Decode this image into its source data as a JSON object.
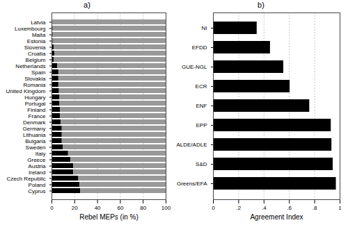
{
  "chart_data": [
    {
      "type": "bar",
      "title": "a)",
      "orientation": "horizontal",
      "stacked": true,
      "grid": true,
      "xlabel": "Rebel MEPs (in %)",
      "categories": [
        "Latvia",
        "Luxembourg",
        "Malta",
        "Estonia",
        "Slovenia",
        "Croatia",
        "Belgium",
        "Netherlands",
        "Spain",
        "Slovakia",
        "Romania",
        "United Kingdom",
        "Hungary",
        "Portugal",
        "Finland",
        "France",
        "Denmark",
        "Germany",
        "Lithuania",
        "Bulgaria",
        "Sweden",
        "Italy",
        "Greece",
        "Austria",
        "Ireland",
        "Czech Republic",
        "Poland",
        "Cyprus"
      ],
      "series": [
        {
          "color": "#000000",
          "values": [
            0,
            1,
            1,
            1,
            2,
            2.5,
            2,
            5,
            6,
            6,
            6,
            6.5,
            7,
            7,
            7.5,
            7.5,
            8,
            9,
            9,
            9,
            10,
            14.5,
            16.5,
            19,
            19,
            23.5,
            24.5,
            25
          ]
        },
        {
          "color": "#999999",
          "values": [
            100,
            99,
            99,
            99,
            98,
            97.5,
            98,
            95,
            94,
            94,
            94,
            93.5,
            93,
            93,
            92.5,
            92.5,
            92,
            91,
            91,
            91,
            90,
            85.5,
            83.5,
            81,
            81,
            76.5,
            75.5,
            75
          ]
        }
      ],
      "xlim": [
        0,
        100
      ],
      "xticks": [
        0,
        20,
        40,
        60,
        80,
        100
      ]
    },
    {
      "type": "bar",
      "title": "b)",
      "orientation": "horizontal",
      "grid": true,
      "xlabel": "Agreement Index",
      "categories": [
        "NI",
        "EFDD",
        "GUE-NGL",
        "ECR",
        "ENF",
        "EPP",
        "ALDE/ADLE",
        "S&D",
        "Greens/EFA"
      ],
      "values": [
        0.345,
        0.45,
        0.555,
        0.605,
        0.76,
        0.93,
        0.935,
        0.945,
        0.97
      ],
      "color": "#000000",
      "xlim": [
        0,
        1
      ],
      "xticks": [
        0,
        {
          "value": 0.2,
          "label": ".2"
        },
        {
          "value": 0.4,
          "label": ".4"
        },
        {
          "value": 0.6,
          "label": ".6"
        },
        {
          "value": 0.8,
          "label": ".8"
        },
        1
      ]
    }
  ]
}
